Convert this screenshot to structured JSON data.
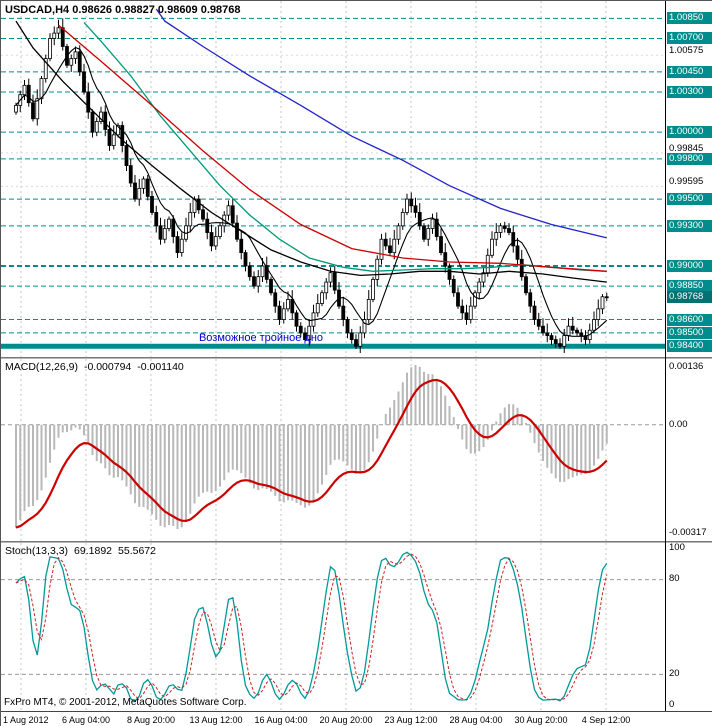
{
  "window": {
    "title_symbol": "USDCAD,H4",
    "open": "0.98626",
    "high": "0.98827",
    "low": "0.98609",
    "close": "0.98768"
  },
  "annotation": {
    "text": "Возможное тройное дно"
  },
  "footer_brand": "FxPro MT4, © 2001-2012, MetaQuotes Software Corp.",
  "colors": {
    "level_teal": "#008C8C",
    "grid_gray": "#C4C4C4",
    "ma_fast": "#000000",
    "ma_slow": "#000000",
    "ma_mid": "#009977",
    "ma_red": "#CC0000",
    "ma_blue": "#2222CC",
    "macd_hist": "#B8B8B8",
    "macd_signal": "#CC0000",
    "stoch_k": "#009999",
    "stoch_d": "#CC2222",
    "annotation_blue": "#0000CC"
  },
  "price_axis": {
    "level_labels": [
      "1.00850",
      "1.00700",
      "1.00450",
      "1.00300",
      "1.00000",
      "0.99800",
      "0.99500",
      "0.99300",
      "0.99000",
      "0.98850",
      "0.98600",
      "0.98500",
      "0.98400"
    ],
    "tick_labels": [
      "1.00575",
      "0.99845",
      "0.99595"
    ],
    "current_price": "0.98768"
  },
  "time_axis": {
    "labels": [
      "1 Aug 2012",
      "6 Aug 04:00",
      "8 Aug 20:00",
      "13 Aug 12:00",
      "16 Aug 04:00",
      "20 Aug 20:00",
      "23 Aug 12:00",
      "28 Aug 04:00",
      "30 Aug 20:00",
      "4 Sep 12:00"
    ]
  },
  "macd_panel": {
    "label": "MACD(12,26,9)",
    "value": "-0.000794",
    "signal": "-0.001140",
    "scale_top": "0.00136",
    "scale_zero": "0.00",
    "scale_bottom": "-0.00317"
  },
  "stoch_panel": {
    "label": "Stoch(13,3,3)",
    "value": "69.1892",
    "signal": "55.5672",
    "scale_labels": [
      "100",
      "80",
      "20",
      "0"
    ]
  },
  "chart_data": [
    {
      "type": "candlestick",
      "title": "USDCAD H4",
      "x_range": [
        "1 Aug 2012",
        "4 Sep 2012 12:00"
      ],
      "price_axis_top": 1.0098,
      "price_axis_bottom": 0.9832,
      "closes": [
        1.002,
        1.0028,
        1.0035,
        1.0022,
        1.001,
        1.0025,
        1.004,
        1.0055,
        1.007,
        1.0074,
        1.0078,
        1.0064,
        1.005,
        1.0055,
        1.006,
        1.0045,
        1.003,
        1.0015,
        1.0,
        1.0008,
        1.0015,
        1.0002,
        0.999,
        0.9998,
        1.0005,
        0.999,
        0.9975,
        0.9962,
        0.995,
        0.9958,
        0.9965,
        0.9952,
        0.994,
        0.993,
        0.992,
        0.9928,
        0.9935,
        0.9922,
        0.991,
        0.992,
        0.993,
        0.994,
        0.995,
        0.9942,
        0.9935,
        0.9925,
        0.9915,
        0.9922,
        0.993,
        0.9938,
        0.9945,
        0.9932,
        0.992,
        0.991,
        0.99,
        0.9892,
        0.9885,
        0.9892,
        0.99,
        0.989,
        0.988,
        0.987,
        0.986,
        0.9868,
        0.9875,
        0.9865,
        0.9855,
        0.985,
        0.9845,
        0.9855,
        0.9865,
        0.9872,
        0.988,
        0.9888,
        0.9895,
        0.9882,
        0.987,
        0.986,
        0.985,
        0.9845,
        0.984,
        0.985,
        0.986,
        0.9875,
        0.989,
        0.9905,
        0.992,
        0.9915,
        0.991,
        0.992,
        0.993,
        0.994,
        0.995,
        0.9945,
        0.994,
        0.993,
        0.992,
        0.9928,
        0.9935,
        0.9922,
        0.991,
        0.99,
        0.989,
        0.988,
        0.987,
        0.9865,
        0.986,
        0.987,
        0.988,
        0.9888,
        0.9895,
        0.9908,
        0.992,
        0.9925,
        0.993,
        0.9928,
        0.9925,
        0.9915,
        0.9905,
        0.9892,
        0.988,
        0.987,
        0.986,
        0.9855,
        0.985,
        0.9848,
        0.9845,
        0.9842,
        0.984,
        0.9848,
        0.9855,
        0.9852,
        0.985,
        0.9848,
        0.9845,
        0.9852,
        0.986,
        0.9868,
        0.9877,
        0.98768
      ],
      "horizontal_levels": [
        1.0085,
        1.007,
        1.0045,
        1.003,
        1.0,
        0.998,
        0.995,
        0.993,
        0.99,
        0.9885,
        0.986,
        0.985,
        0.984
      ],
      "grid_ticks": [
        1.00575,
        0.99845,
        0.99595
      ],
      "ma_lines": [
        {
          "name": "ma-fast-black",
          "color": "#000000",
          "sma_period": 8
        },
        {
          "name": "ma-slow-black",
          "color": "#000000",
          "points": [
            [
              0,
              1.0083
            ],
            [
              4,
              1.0063
            ],
            [
              11,
              1.0038
            ],
            [
              18,
              1.0016
            ],
            [
              25,
              0.9994
            ],
            [
              32,
              0.9975
            ],
            [
              39,
              0.9957
            ],
            [
              46,
              0.994
            ],
            [
              53,
              0.9926
            ],
            [
              60,
              0.9912
            ],
            [
              67,
              0.9903
            ],
            [
              74,
              0.9896
            ],
            [
              81,
              0.9893
            ],
            [
              88,
              0.9894
            ],
            [
              95,
              0.9896
            ],
            [
              102,
              0.9896
            ],
            [
              109,
              0.9894
            ],
            [
              116,
              0.9896
            ],
            [
              124,
              0.9894
            ],
            [
              131,
              0.9891
            ],
            [
              139,
              0.9888
            ]
          ]
        },
        {
          "name": "ma-teal",
          "color": "#009977",
          "points": [
            [
              16,
              1.0082
            ],
            [
              20,
              1.0068
            ],
            [
              27,
              1.0042
            ],
            [
              34,
              1.0012
            ],
            [
              41,
              0.9986
            ],
            [
              48,
              0.996
            ],
            [
              55,
              0.9938
            ],
            [
              62,
              0.992
            ],
            [
              69,
              0.9906
            ],
            [
              77,
              0.9899
            ],
            [
              84,
              0.9896
            ],
            [
              91,
              0.9897
            ],
            [
              98,
              0.9898
            ],
            [
              105,
              0.9898
            ],
            [
              112,
              0.9899
            ],
            [
              119,
              0.9901
            ],
            [
              126,
              0.9899
            ],
            [
              133,
              0.9897
            ],
            [
              139,
              0.9896
            ]
          ]
        },
        {
          "name": "ma-red",
          "color": "#CC0000",
          "points": [
            [
              10,
              1.008
            ],
            [
              20,
              1.0053
            ],
            [
              32,
              1.002
            ],
            [
              44,
              0.9986
            ],
            [
              55,
              0.9957
            ],
            [
              67,
              0.9931
            ],
            [
              79,
              0.9913
            ],
            [
              91,
              0.9906
            ],
            [
              102,
              0.9903
            ],
            [
              114,
              0.9902
            ],
            [
              126,
              0.9899
            ],
            [
              139,
              0.9896
            ]
          ]
        },
        {
          "name": "ma-blue",
          "color": "#2222CC",
          "points": [
            [
              33,
              1.0092
            ],
            [
              35,
              1.0083
            ],
            [
              44,
              1.0064
            ],
            [
              55,
              1.0042
            ],
            [
              67,
              1.002
            ],
            [
              79,
              0.9997
            ],
            [
              91,
              0.9979
            ],
            [
              102,
              0.996
            ],
            [
              114,
              0.9943
            ],
            [
              126,
              0.9931
            ],
            [
              139,
              0.9921
            ]
          ]
        }
      ]
    },
    {
      "type": "macd",
      "params": "12,26,9",
      "current": -0.000794,
      "current_signal": -0.00114,
      "scale_top": 0.00136,
      "scale_bottom": -0.00317
    },
    {
      "type": "stochastic",
      "params": "13,3,3",
      "current_k": 69.1892,
      "current_d": 55.5672,
      "levels": [
        80,
        20
      ],
      "range": [
        0,
        100
      ]
    }
  ]
}
